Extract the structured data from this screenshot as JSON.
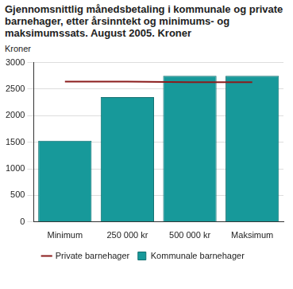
{
  "chart_data": {
    "type": "bar",
    "title": "Gjennomsnittlig månedsbetaling i kommunale og private barnehager, etter årsinntekt og minimums- og maksimumssats. August 2005. Kroner",
    "y_label": "Kroner",
    "categories": [
      "Minimum",
      "250 000 kr",
      "500 000 kr",
      "Maksimum"
    ],
    "series": [
      {
        "name": "Kommunale barnehager",
        "type": "bar",
        "color": "#17999a",
        "values": [
          1530,
          2350,
          2750,
          2750
        ]
      },
      {
        "name": "Private barnehager",
        "type": "line",
        "color": "#8b1c1c",
        "values": [
          2640,
          2640,
          2630,
          2630
        ]
      }
    ],
    "ylim": [
      0,
      3000
    ],
    "yticks": [
      0,
      500,
      1000,
      1500,
      2000,
      2500,
      3000
    ],
    "grid": true,
    "legend": "bottom"
  }
}
